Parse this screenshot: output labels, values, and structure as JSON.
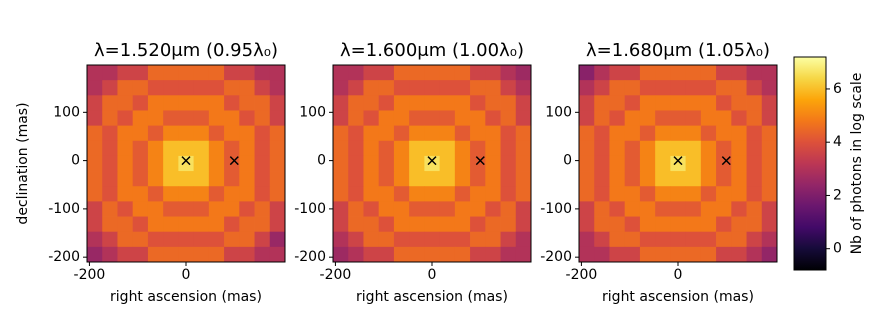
{
  "chart_data": [
    {
      "type": "heatmap",
      "title": "λ=1.520μm (0.95λ₀)",
      "xlabel": "right ascension (mas)",
      "ylabel": "declination (mas)",
      "xlim": [
        -205,
        205
      ],
      "ylim": [
        -210,
        198
      ],
      "xticks": [
        -200,
        0
      ],
      "yticks": [
        -200,
        -100,
        0,
        100
      ],
      "points": {
        "x": [
          0,
          100
        ],
        "y": [
          0,
          0
        ]
      },
      "z": [
        [
          3.0,
          3.0,
          3.6,
          3.6,
          4.5,
          4.5,
          4.5,
          4.5,
          4.5,
          3.6,
          3.6,
          3.0,
          3.0
        ],
        [
          3.0,
          3.6,
          4.5,
          4.5,
          4.0,
          4.0,
          4.0,
          4.0,
          4.0,
          4.5,
          4.5,
          3.6,
          3.0
        ],
        [
          3.6,
          4.5,
          4.5,
          4.0,
          4.8,
          4.8,
          4.8,
          4.8,
          4.8,
          4.0,
          4.5,
          4.5,
          3.6
        ],
        [
          3.6,
          4.5,
          4.0,
          4.8,
          4.8,
          4.2,
          4.2,
          4.2,
          4.8,
          4.8,
          4.0,
          4.5,
          3.6
        ],
        [
          4.5,
          4.0,
          4.8,
          4.8,
          4.2,
          5.0,
          5.0,
          5.0,
          4.2,
          4.8,
          4.8,
          4.0,
          4.5
        ],
        [
          4.5,
          4.0,
          4.8,
          4.2,
          5.0,
          6.0,
          6.0,
          6.0,
          5.0,
          4.2,
          4.8,
          4.0,
          4.5
        ],
        [
          4.5,
          4.0,
          4.8,
          4.2,
          5.0,
          6.0,
          6.6,
          6.0,
          5.0,
          4.2,
          4.8,
          4.0,
          4.5
        ],
        [
          4.5,
          4.0,
          4.8,
          4.2,
          5.0,
          6.0,
          6.0,
          6.0,
          5.0,
          4.2,
          4.8,
          4.0,
          4.5
        ],
        [
          4.5,
          4.0,
          4.8,
          4.8,
          4.2,
          5.0,
          5.0,
          5.0,
          4.2,
          4.8,
          4.8,
          4.0,
          4.5
        ],
        [
          3.6,
          4.5,
          4.0,
          4.8,
          4.8,
          4.2,
          4.2,
          4.2,
          4.8,
          4.8,
          4.0,
          4.5,
          3.6
        ],
        [
          3.6,
          4.5,
          4.5,
          4.0,
          4.8,
          4.8,
          4.8,
          4.8,
          4.8,
          4.0,
          4.5,
          4.5,
          3.6
        ],
        [
          3.0,
          3.6,
          4.5,
          4.5,
          4.0,
          4.0,
          4.0,
          4.0,
          4.0,
          4.5,
          4.5,
          3.6,
          2.5
        ],
        [
          2.5,
          3.0,
          3.6,
          3.6,
          4.5,
          4.5,
          4.5,
          4.5,
          4.5,
          3.6,
          3.6,
          3.0,
          3.0
        ]
      ]
    },
    {
      "type": "heatmap",
      "title": "λ=1.600μm (1.00λ₀)",
      "xlabel": "right ascension (mas)",
      "xlim": [
        -205,
        205
      ],
      "ylim": [
        -210,
        198
      ],
      "xticks": [
        -200,
        0
      ],
      "yticks": [
        -200,
        -100,
        0,
        100
      ],
      "points": {
        "x": [
          0,
          100
        ],
        "y": [
          0,
          0
        ]
      },
      "z": [
        [
          3.0,
          3.0,
          3.6,
          3.6,
          4.5,
          4.5,
          4.5,
          4.5,
          4.5,
          3.6,
          3.6,
          3.0,
          2.6
        ],
        [
          3.0,
          3.6,
          4.5,
          4.5,
          4.0,
          4.0,
          4.0,
          4.0,
          4.0,
          4.5,
          4.5,
          3.6,
          3.0
        ],
        [
          3.6,
          4.5,
          4.5,
          4.0,
          4.8,
          4.8,
          4.8,
          4.8,
          4.8,
          4.0,
          4.5,
          4.5,
          3.6
        ],
        [
          3.6,
          4.5,
          4.0,
          4.8,
          4.8,
          4.2,
          4.2,
          4.2,
          4.8,
          4.8,
          4.0,
          4.5,
          3.6
        ],
        [
          4.5,
          4.0,
          4.8,
          4.8,
          4.2,
          5.0,
          5.0,
          5.0,
          4.2,
          4.8,
          4.8,
          4.0,
          4.5
        ],
        [
          4.5,
          4.0,
          4.8,
          4.2,
          5.0,
          6.0,
          6.0,
          6.0,
          5.0,
          4.2,
          4.8,
          4.0,
          4.5
        ],
        [
          4.5,
          4.0,
          4.8,
          4.2,
          5.0,
          6.0,
          6.6,
          6.0,
          5.0,
          4.2,
          4.8,
          4.0,
          4.5
        ],
        [
          4.5,
          4.0,
          4.8,
          4.2,
          5.0,
          6.0,
          6.0,
          6.0,
          5.0,
          4.2,
          4.8,
          4.0,
          4.5
        ],
        [
          4.5,
          4.0,
          4.8,
          4.8,
          4.2,
          5.0,
          5.0,
          5.0,
          4.2,
          4.8,
          4.8,
          4.0,
          4.5
        ],
        [
          3.6,
          4.5,
          4.0,
          4.8,
          4.8,
          4.2,
          4.2,
          4.2,
          4.8,
          4.8,
          4.0,
          4.5,
          3.6
        ],
        [
          3.6,
          4.5,
          4.5,
          4.0,
          4.8,
          4.8,
          4.8,
          4.8,
          4.8,
          4.0,
          4.5,
          4.5,
          3.6
        ],
        [
          3.0,
          3.6,
          4.5,
          4.5,
          4.0,
          4.0,
          4.0,
          4.0,
          4.0,
          4.5,
          4.5,
          3.6,
          3.0
        ],
        [
          2.6,
          3.0,
          3.6,
          3.6,
          4.5,
          4.5,
          4.5,
          4.5,
          4.5,
          3.6,
          3.6,
          3.0,
          3.0
        ]
      ]
    },
    {
      "type": "heatmap",
      "title": "λ=1.680μm (1.05λ₀)",
      "xlabel": "right ascension (mas)",
      "xlim": [
        -205,
        205
      ],
      "ylim": [
        -210,
        198
      ],
      "xticks": [
        -200,
        0
      ],
      "yticks": [
        -200,
        -100,
        0,
        100
      ],
      "points": {
        "x": [
          0,
          100
        ],
        "y": [
          0,
          0
        ]
      },
      "z": [
        [
          2.2,
          3.0,
          3.6,
          3.6,
          4.5,
          4.5,
          4.5,
          4.5,
          4.5,
          3.6,
          3.6,
          3.0,
          3.0
        ],
        [
          3.0,
          3.6,
          4.5,
          4.5,
          4.0,
          4.0,
          4.0,
          4.0,
          4.0,
          4.5,
          4.5,
          3.6,
          3.0
        ],
        [
          3.6,
          4.5,
          4.5,
          4.0,
          4.8,
          4.8,
          4.8,
          4.8,
          4.8,
          4.0,
          4.5,
          4.5,
          3.6
        ],
        [
          3.6,
          4.5,
          4.0,
          4.8,
          4.8,
          4.2,
          4.2,
          4.2,
          4.8,
          4.8,
          4.0,
          4.5,
          3.6
        ],
        [
          4.5,
          4.0,
          4.8,
          4.8,
          4.2,
          5.0,
          5.0,
          5.0,
          4.2,
          4.8,
          4.8,
          4.0,
          4.5
        ],
        [
          4.5,
          4.0,
          4.8,
          4.2,
          5.0,
          6.0,
          6.0,
          6.0,
          5.0,
          4.2,
          4.8,
          4.0,
          4.5
        ],
        [
          4.5,
          4.0,
          4.8,
          4.2,
          5.0,
          6.0,
          6.6,
          6.0,
          5.0,
          4.2,
          4.8,
          4.0,
          4.5
        ],
        [
          4.5,
          4.0,
          4.8,
          4.2,
          5.0,
          6.0,
          6.0,
          6.0,
          5.0,
          4.2,
          4.8,
          4.0,
          4.5
        ],
        [
          4.5,
          4.0,
          4.8,
          4.8,
          4.2,
          5.0,
          5.0,
          5.0,
          4.2,
          4.8,
          4.8,
          4.0,
          4.5
        ],
        [
          3.6,
          4.5,
          4.0,
          4.8,
          4.8,
          4.2,
          4.2,
          4.2,
          4.8,
          4.8,
          4.0,
          4.5,
          3.6
        ],
        [
          3.6,
          4.5,
          4.5,
          4.0,
          4.8,
          4.8,
          4.8,
          4.8,
          4.8,
          4.0,
          4.5,
          4.5,
          3.6
        ],
        [
          3.0,
          3.6,
          4.5,
          4.5,
          4.0,
          4.0,
          4.0,
          4.0,
          4.0,
          4.5,
          4.5,
          3.6,
          3.0
        ],
        [
          3.0,
          3.0,
          3.6,
          3.6,
          4.5,
          4.5,
          4.5,
          4.5,
          4.5,
          3.6,
          3.6,
          3.0,
          2.4
        ]
      ]
    },
    {
      "type": "colorbar",
      "label": "Nb of photons in log scale",
      "lim": [
        -0.8,
        7.2
      ],
      "ticks": [
        0,
        2,
        4,
        6
      ],
      "colormap": [
        "#000004",
        "#160b39",
        "#420a68",
        "#6a176e",
        "#932667",
        "#bc3754",
        "#dd513a",
        "#f37819",
        "#fca50a",
        "#f6d746",
        "#fcffa4"
      ]
    }
  ]
}
